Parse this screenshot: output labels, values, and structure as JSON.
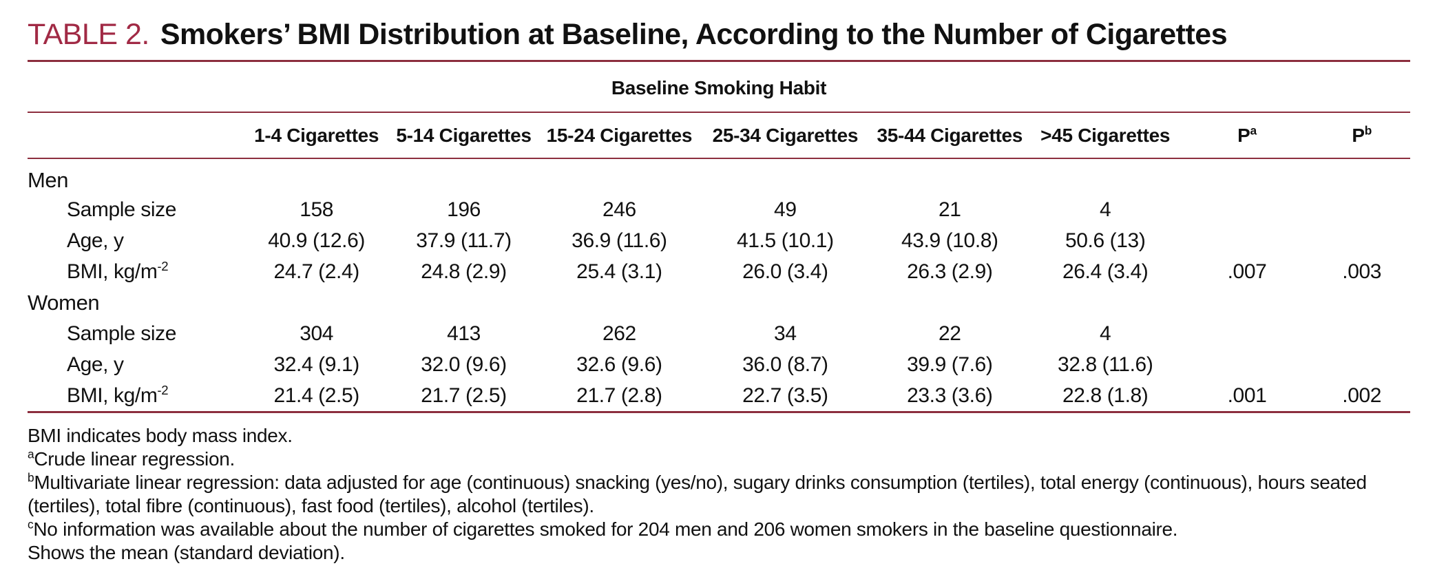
{
  "page": {
    "accent_red": "#a12a45",
    "rule_color": "#8c2e3e",
    "background": "#ffffff"
  },
  "title": {
    "label": "TABLE 2.",
    "text": "Smokers’ BMI Distribution at Baseline, According to the Number of Cigarettes"
  },
  "table": {
    "spanner": "Baseline Smoking Habit",
    "columns": [
      "1-4 Cigarettes",
      "5-14 Cigarettes",
      "15-24 Cigarettes",
      "25-34 Cigarettes",
      "35-44 Cigarettes",
      ">45 Cigarettes"
    ],
    "p_columns": [
      {
        "base": "P",
        "sup": "a"
      },
      {
        "base": "P",
        "sup": "b"
      }
    ],
    "sections": [
      {
        "name": "Men",
        "rows": [
          {
            "label": "Sample size",
            "values": [
              "158",
              "196",
              "246",
              "49",
              "21",
              "4"
            ],
            "p1": "",
            "p2": ""
          },
          {
            "label": "Age, y",
            "values": [
              "40.9 (12.6)",
              "37.9 (11.7)",
              "36.9 (11.6)",
              "41.5 (10.1)",
              "43.9 (10.8)",
              "50.6 (13)"
            ],
            "p1": "",
            "p2": ""
          },
          {
            "label": "BMI, kg/m",
            "label_sup": "-2",
            "values": [
              "24.7 (2.4)",
              "24.8 (2.9)",
              "25.4 (3.1)",
              "26.0 (3.4)",
              "26.3 (2.9)",
              "26.4 (3.4)"
            ],
            "p1": ".007",
            "p2": ".003"
          }
        ]
      },
      {
        "name": "Women",
        "rows": [
          {
            "label": "Sample size",
            "values": [
              "304",
              "413",
              "262",
              "34",
              "22",
              "4"
            ],
            "p1": "",
            "p2": ""
          },
          {
            "label": "Age, y",
            "values": [
              "32.4 (9.1)",
              "32.0 (9.6)",
              "32.6 (9.6)",
              "36.0 (8.7)",
              "39.9 (7.6)",
              "32.8 (11.6)"
            ],
            "p1": "",
            "p2": ""
          },
          {
            "label": "BMI, kg/m",
            "label_sup": "-2",
            "values": [
              "21.4 (2.5)",
              "21.7 (2.5)",
              "21.7 (2.8)",
              "22.7 (3.5)",
              "23.3 (3.6)",
              "22.8 (1.8)"
            ],
            "p1": ".001",
            "p2": ".002"
          }
        ]
      }
    ]
  },
  "footnotes": [
    {
      "marker": "",
      "text": "BMI indicates body mass index."
    },
    {
      "marker": "a",
      "text": "Crude linear regression."
    },
    {
      "marker": "b",
      "text": "Multivariate linear regression: data adjusted for age (continuous) snacking (yes/no), sugary drinks consumption (tertiles), total energy (continuous), hours seated (tertiles), total fibre (continuous), fast food (tertiles), alcohol (tertiles)."
    },
    {
      "marker": "c",
      "text": "No information was available about the number of cigarettes smoked for 204 men and 206 women smokers in the baseline questionnaire."
    },
    {
      "marker": "",
      "text": "Shows the mean (standard deviation)."
    }
  ]
}
